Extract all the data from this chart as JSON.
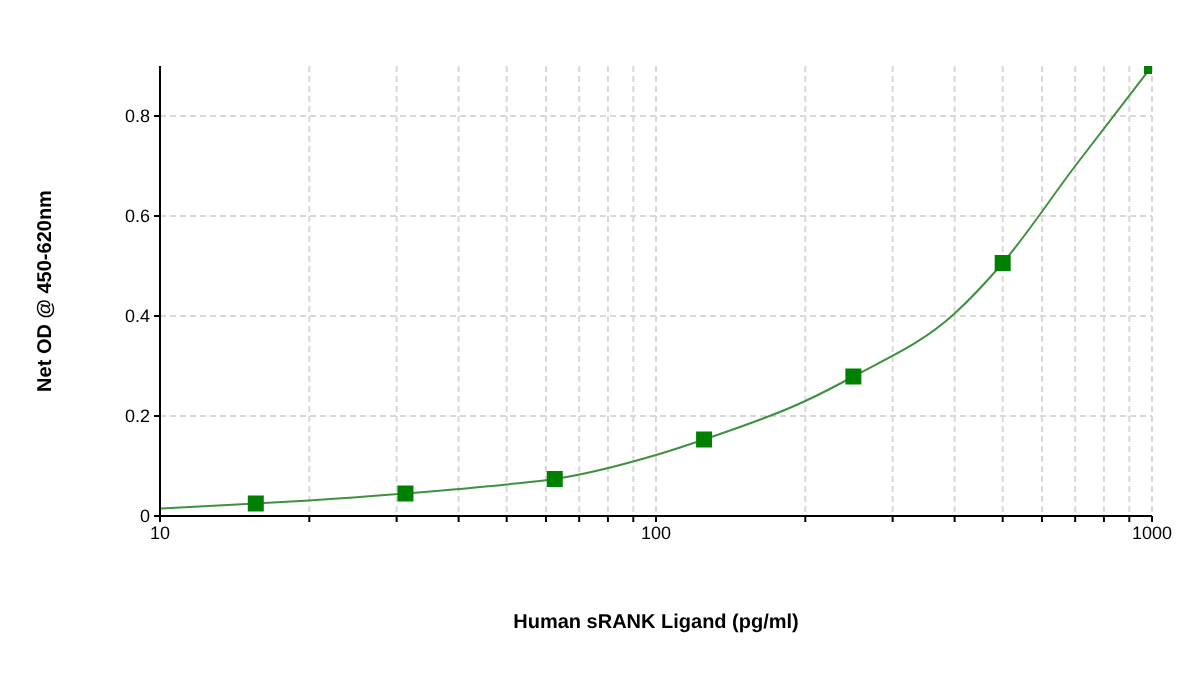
{
  "chart_data": {
    "type": "scatter",
    "xlabel": "Human sRANK Ligand (pg/ml)",
    "ylabel": "Net OD @ 450-620nm",
    "log": "x",
    "grid": true,
    "marker": "square",
    "xlim": [
      10,
      1000
    ],
    "ylim": [
      0,
      0.9
    ],
    "xticks": [
      10,
      {
        "value": 20,
        "label": null
      },
      {
        "value": 30,
        "label": null
      },
      {
        "value": 40,
        "label": null
      },
      {
        "value": 50,
        "label": null
      },
      {
        "value": 60,
        "label": null
      },
      {
        "value": 70,
        "label": null
      },
      {
        "value": 80,
        "label": null
      },
      {
        "value": 90,
        "label": null
      },
      100,
      {
        "value": 200,
        "label": null
      },
      {
        "value": 300,
        "label": null
      },
      {
        "value": 400,
        "label": null
      },
      {
        "value": 500,
        "label": null
      },
      {
        "value": 600,
        "label": null
      },
      {
        "value": 700,
        "label": null
      },
      {
        "value": 800,
        "label": null
      },
      {
        "value": 900,
        "label": null
      },
      1000
    ],
    "yticks": [
      0,
      0.2,
      0.4,
      0.6,
      0.8
    ],
    "series": [
      {
        "color": "#008000",
        "x": [
          15.6,
          31.25,
          62.5,
          125,
          250,
          500,
          1000
        ],
        "values": [
          0.025,
          0.045,
          0.074,
          0.153,
          0.279,
          0.506,
          0.9
        ]
      },
      {
        "type": "line",
        "color": "#3f913f",
        "marker": "none",
        "line_style": "solid",
        "x": [
          10,
          15.6,
          20,
          31.25,
          50,
          62.5,
          100,
          125,
          200,
          250,
          400,
          500,
          700,
          1000
        ],
        "values": [
          0.015,
          0.025,
          0.031,
          0.045,
          0.063,
          0.074,
          0.122,
          0.153,
          0.23,
          0.279,
          0.405,
          0.506,
          0.7,
          0.9
        ]
      }
    ]
  }
}
